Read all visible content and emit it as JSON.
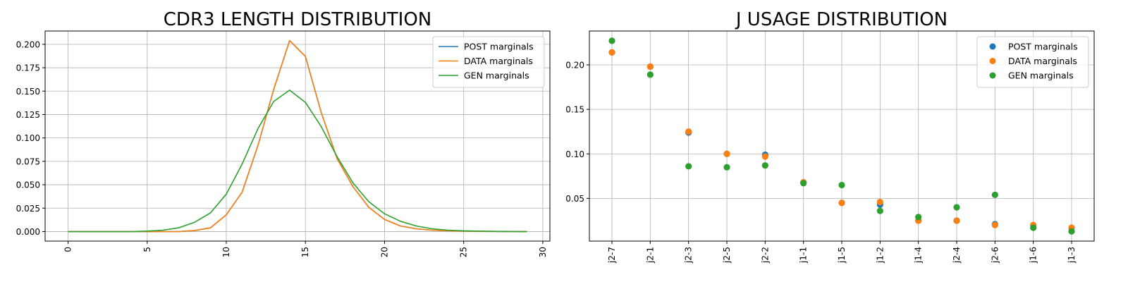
{
  "chart_data": [
    {
      "type": "line",
      "title": "CDR3 LENGTH DISTRIBUTION",
      "xlabel": "",
      "ylabel": "",
      "xlim": [
        -1.45,
        30.45
      ],
      "ylim": [
        -0.0102,
        0.2142
      ],
      "xticks": [
        "0",
        "5",
        "10",
        "15",
        "20",
        "25",
        "30"
      ],
      "yticks": [
        "0.000",
        "0.025",
        "0.050",
        "0.075",
        "0.100",
        "0.125",
        "0.150",
        "0.175",
        "0.200"
      ],
      "grid": true,
      "legend_position": "top-right",
      "x": [
        0,
        1,
        2,
        3,
        4,
        5,
        6,
        7,
        8,
        9,
        10,
        11,
        12,
        13,
        14,
        15,
        16,
        17,
        18,
        19,
        20,
        21,
        22,
        23,
        24,
        25,
        26,
        27,
        28,
        29
      ],
      "series": [
        {
          "name": "POST marginals",
          "color": "#1f77b4",
          "values": [
            0,
            0,
            0,
            0,
            0,
            0,
            0,
            0,
            0.001,
            0.004,
            0.018,
            0.042,
            0.092,
            0.152,
            0.204,
            0.187,
            0.127,
            0.078,
            0.048,
            0.026,
            0.013,
            0.006,
            0.003,
            0.0015,
            0.0008,
            0.0004,
            0.0002,
            0.0001,
            0,
            0
          ]
        },
        {
          "name": "DATA marginals",
          "color": "#ff7f0e",
          "values": [
            0,
            0,
            0,
            0,
            0,
            0,
            0,
            0,
            0.001,
            0.004,
            0.018,
            0.042,
            0.092,
            0.152,
            0.204,
            0.187,
            0.127,
            0.078,
            0.048,
            0.026,
            0.013,
            0.006,
            0.003,
            0.0015,
            0.0008,
            0.0004,
            0.0002,
            0.0001,
            0,
            0
          ]
        },
        {
          "name": "GEN marginals",
          "color": "#2ca02c",
          "values": [
            0,
            0,
            0,
            0,
            0,
            0.0005,
            0.0015,
            0.004,
            0.01,
            0.02,
            0.04,
            0.072,
            0.11,
            0.139,
            0.151,
            0.138,
            0.112,
            0.08,
            0.052,
            0.032,
            0.019,
            0.011,
            0.006,
            0.003,
            0.0015,
            0.0008,
            0.0004,
            0.0002,
            0.0001,
            0
          ]
        }
      ]
    },
    {
      "type": "scatter",
      "title": "J USAGE DISTRIBUTION",
      "xlabel": "",
      "ylabel": "",
      "ylim": [
        0.002,
        0.238
      ],
      "yticks": [
        "0.05",
        "0.10",
        "0.15",
        "0.20"
      ],
      "grid": true,
      "legend_position": "top-right",
      "categories": [
        "j2-7",
        "j2-1",
        "j2-3",
        "j2-5",
        "j2-2",
        "j1-1",
        "j1-5",
        "j1-2",
        "j1-4",
        "j2-4",
        "j2-6",
        "j1-6",
        "j1-3"
      ],
      "series": [
        {
          "name": "POST marginals",
          "color": "#1f77b4",
          "values": [
            0.214,
            0.198,
            0.124,
            0.1,
            0.099,
            0.068,
            0.045,
            0.043,
            0.025,
            0.025,
            0.021,
            0.02,
            0.017
          ]
        },
        {
          "name": "DATA marginals",
          "color": "#ff7f0e",
          "values": [
            0.214,
            0.198,
            0.125,
            0.1,
            0.097,
            0.068,
            0.045,
            0.046,
            0.025,
            0.025,
            0.02,
            0.02,
            0.017
          ]
        },
        {
          "name": "GEN marginals",
          "color": "#2ca02c",
          "values": [
            0.227,
            0.189,
            0.086,
            0.085,
            0.087,
            0.067,
            0.065,
            0.036,
            0.029,
            0.04,
            0.054,
            0.017,
            0.013
          ]
        }
      ]
    }
  ]
}
